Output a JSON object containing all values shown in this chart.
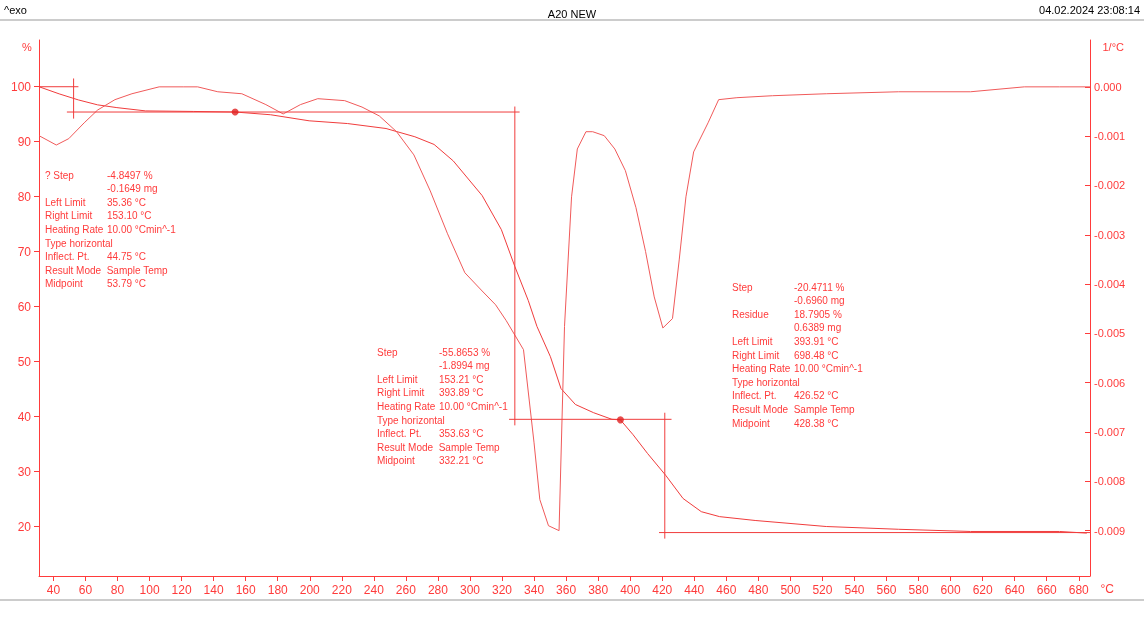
{
  "chart_data": {
    "type": "line",
    "title": "A20 NEW",
    "xlabel": "°C",
    "ylabel": "%",
    "y2label": "1/°C",
    "annotations": [
      "^exo",
      "04.02.2024 23:08:14",
      "? Step\t-4.8497 %\n\t-0.1649 mg\nLeft Limit\t35.36 °C\nRight Limit\t153.10 °C\nHeating Rate\t10.00 °Cmin^-1\nType horizontal\nInflect. Pt.\t44.75 °C\nResult Mode  Sample Temp\nMidpoint\t53.79 °C",
      "Step\t-55.8653 %\n\t-1.8994 mg\nLeft Limit\t153.21 °C\nRight Limit\t393.89 °C\nHeating Rate\t10.00 °Cmin^-1\nType horizontal\nInflect. Pt.\t353.63 °C\nResult Mode  Sample Temp\nMidpoint\t332.21 °C",
      "Step\t-20.4711 %\n\t-0.6960 mg\nResidue\t18.7905 %\n\t0.6389 mg\nLeft Limit\t393.91 °C\nRight Limit\t698.48 °C\nHeating Rate\t10.00 °Cmin^-1\nType horizontal\nInflect. Pt.\t426.52 °C\nResult Mode  Sample Temp\nMidpoint\t428.38 °C"
    ],
    "xlim": [
      31,
      687
    ],
    "xticks": [
      40,
      60,
      80,
      100,
      120,
      140,
      160,
      180,
      200,
      220,
      240,
      260,
      280,
      300,
      320,
      340,
      360,
      380,
      400,
      420,
      440,
      460,
      480,
      500,
      520,
      540,
      560,
      580,
      600,
      620,
      640,
      660,
      680
    ],
    "ylim": [
      11,
      108.5
    ],
    "yticks": [
      20,
      30,
      40,
      50,
      60,
      70,
      80,
      90,
      100
    ],
    "y2lim": [
      -0.00992,
      0.00095
    ],
    "y2ticks": [
      {
        "value": 0,
        "label": "0.000"
      },
      {
        "value": -0.001,
        "label": "-0.001"
      },
      {
        "value": -0.002,
        "label": "-0.002"
      },
      {
        "value": -0.003,
        "label": "-0.003"
      },
      {
        "value": -0.004,
        "label": "-0.004"
      },
      {
        "value": -0.005,
        "label": "-0.005"
      },
      {
        "value": -0.006,
        "label": "-0.006"
      },
      {
        "value": -0.007,
        "label": "-0.007"
      },
      {
        "value": -0.008,
        "label": "-0.008"
      },
      {
        "value": -0.009,
        "label": "-0.009"
      }
    ],
    "grid": false,
    "marker": "none",
    "line_style": "solid",
    "series": [
      {
        "axis": "y",
        "color": "#f03c3c",
        "x": [
          31,
          43.6,
          55.6,
          67.6,
          79.6,
          97.6,
          127.6,
          153.4,
          175.6,
          199.6,
          223.6,
          247.6,
          265.6,
          277.6,
          289.6,
          307.6,
          319.6,
          328,
          336.4,
          341.8,
          350.2,
          356.8,
          365.8,
          377.2,
          388.6,
          393.9,
          401.8,
          410.8,
          422.2,
          433,
          444.4,
          455.8,
          478,
          522.4,
          567.4,
          612.4,
          668,
          685
        ],
        "values": [
          100,
          98.7,
          97.6,
          96.7,
          96.2,
          95.6,
          95.5,
          95.4,
          94.9,
          93.8,
          93.3,
          92.4,
          90.9,
          89.5,
          86.5,
          80.2,
          74,
          67.3,
          61.1,
          56.4,
          50.9,
          45.1,
          42.2,
          40.7,
          39.5,
          39.4,
          36.7,
          33.3,
          29.3,
          25.1,
          22.7,
          21.8,
          21.1,
          20,
          19.5,
          19.1,
          19.1,
          18.8
        ]
      },
      {
        "axis": "y2",
        "color": "#f05a5a",
        "x": [
          31,
          41.8,
          49.6,
          59.2,
          67.6,
          78.4,
          89,
          106,
          121,
          130,
          142.6,
          157.6,
          172.6,
          183.4,
          194.2,
          205,
          221.8,
          232.6,
          243.4,
          254.2,
          265,
          275.2,
          286,
          296.8,
          307.6,
          316,
          322.6,
          333.4,
          340,
          343.6,
          349,
          355.6,
          359,
          363.4,
          367,
          372.4,
          376.6,
          383.8,
          390.4,
          397,
          403.6,
          409.6,
          415,
          420.4,
          426.4,
          430.6,
          434.8,
          439.6,
          448.6,
          455.2,
          466.6,
          488.8,
          522.4,
          567.4,
          612.4,
          646,
          668,
          687
        ],
        "values": [
          -0.00099,
          -0.00118,
          -0.00105,
          -0.00073,
          -0.00047,
          -0.00026,
          -0.00014,
          0,
          0,
          0,
          -0.0001,
          -0.00014,
          -0.00036,
          -0.00055,
          -0.00036,
          -0.00024,
          -0.00028,
          -0.00041,
          -0.00059,
          -0.00091,
          -0.00138,
          -0.00211,
          -0.00298,
          -0.00377,
          -0.00414,
          -0.00442,
          -0.00474,
          -0.00533,
          -0.00722,
          -0.00837,
          -0.0089,
          -0.009,
          -0.00486,
          -0.00223,
          -0.00126,
          -0.00091,
          -0.00091,
          -0.00099,
          -0.00126,
          -0.0017,
          -0.00245,
          -0.00334,
          -0.00426,
          -0.00489,
          -0.0047,
          -0.00351,
          -0.00223,
          -0.00132,
          -0.00073,
          -0.00026,
          -0.00022,
          -0.00018,
          -0.00014,
          -0.0001,
          -0.0001,
          0,
          0,
          0
        ]
      },
      {
        "type": "line",
        "axis": "y",
        "color": "#f03c3c",
        "x": [
          31,
          55.6
        ],
        "values": [
          100,
          100
        ]
      },
      {
        "type": "line",
        "axis": "y",
        "color": "#f03c3c",
        "x": [
          52.6,
          52.6
        ],
        "values": [
          101.5,
          94.2
        ]
      },
      {
        "type": "line",
        "axis": "y",
        "color": "#f03c3c",
        "x": [
          48.4,
          331
        ],
        "values": [
          95.4,
          95.4
        ]
      },
      {
        "type": "line",
        "axis": "y",
        "color": "#f03c3c",
        "x": [
          328,
          328
        ],
        "values": [
          96.4,
          38.4
        ]
      },
      {
        "type": "line",
        "axis": "y",
        "color": "#f03c3c",
        "x": [
          324.4,
          425.8
        ],
        "values": [
          39.5,
          39.5
        ]
      },
      {
        "type": "line",
        "axis": "y",
        "color": "#f03c3c",
        "x": [
          421.6,
          421.6
        ],
        "values": [
          40.7,
          17.8
        ]
      },
      {
        "type": "line",
        "axis": "y",
        "color": "#f03c3c",
        "x": [
          418,
          687
        ],
        "values": [
          18.9,
          18.9
        ]
      },
      {
        "type": "scatter",
        "axis": "y",
        "color": "#e02020",
        "marker": "circle",
        "x": [
          153.4,
          393.9
        ],
        "values": [
          95.4,
          39.4
        ]
      }
    ]
  }
}
